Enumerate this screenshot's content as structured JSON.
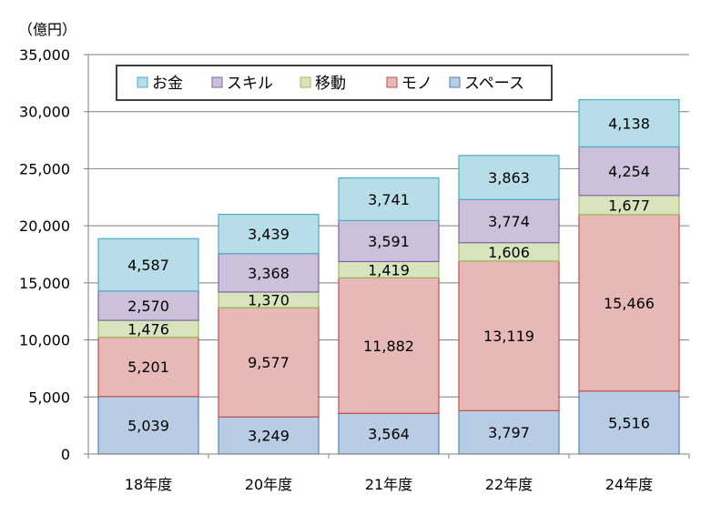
{
  "chart_data": {
    "type": "bar",
    "stacked": true,
    "unit_label": "（億円）",
    "categories": [
      "18年度",
      "20年度",
      "21年度",
      "22年度",
      "24年度"
    ],
    "series": [
      {
        "name": "スペース",
        "values": [
          5039,
          3249,
          3564,
          3797,
          5516
        ],
        "labels": [
          "5,039",
          "3,249",
          "3,564",
          "3,797",
          "5,516"
        ],
        "fill": "#b8cce4",
        "stroke": "#4f81bd"
      },
      {
        "name": "モノ",
        "values": [
          5201,
          9577,
          11882,
          13119,
          15466
        ],
        "labels": [
          "5,201",
          "9,577",
          "11,882",
          "13,119",
          "15,466"
        ],
        "fill": "#e6b9b8",
        "stroke": "#c0504d"
      },
      {
        "name": "移動",
        "values": [
          1476,
          1370,
          1419,
          1606,
          1677
        ],
        "labels": [
          "1,476",
          "1,370",
          "1,419",
          "1,606",
          "1,677"
        ],
        "fill": "#d7e4bd",
        "stroke": "#9bbb59"
      },
      {
        "name": "スキル",
        "values": [
          2570,
          3368,
          3591,
          3774,
          4254
        ],
        "labels": [
          "2,570",
          "3,368",
          "3,591",
          "3,774",
          "4,254"
        ],
        "fill": "#ccc1da",
        "stroke": "#8064a2"
      },
      {
        "name": "お金",
        "values": [
          4587,
          3439,
          3741,
          3863,
          4138
        ],
        "labels": [
          "4,587",
          "3,439",
          "3,741",
          "3,863",
          "4,138"
        ],
        "fill": "#b7dee8",
        "stroke": "#4bacc6"
      }
    ],
    "legend_order": [
      "お金",
      "スキル",
      "移動",
      "モノ",
      "スペース"
    ],
    "ylim": [
      0,
      35000
    ],
    "yticks": [
      0,
      5000,
      10000,
      15000,
      20000,
      25000,
      30000,
      35000
    ],
    "ytick_labels": [
      "0",
      "5,000",
      "10,000",
      "15,000",
      "20,000",
      "25,000",
      "30,000",
      "35,000"
    ],
    "grid": true,
    "legend_position": "top-left"
  }
}
